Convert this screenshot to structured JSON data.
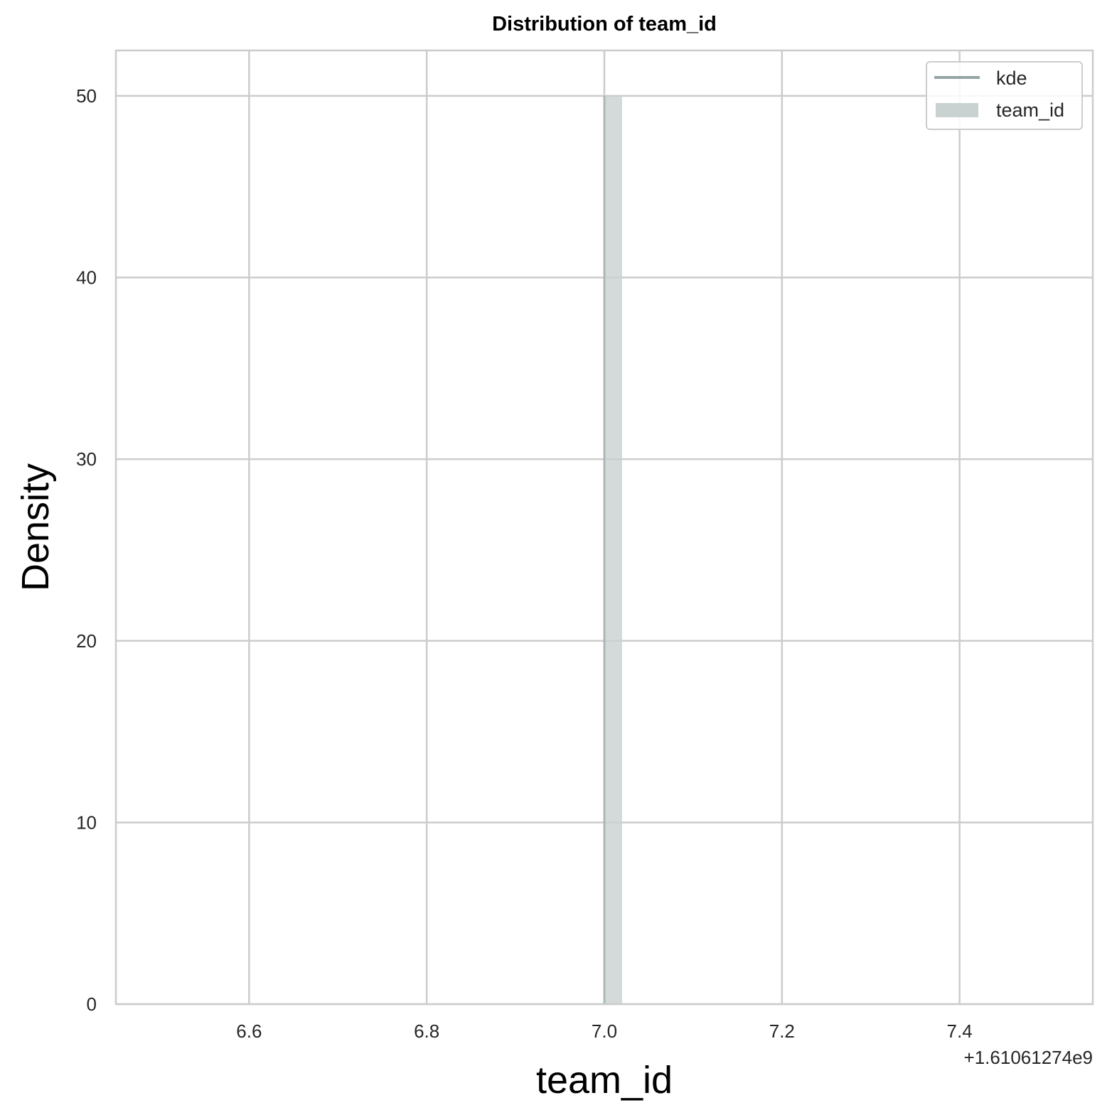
{
  "chart_data": {
    "type": "bar",
    "title": "Distribution of team_id",
    "xlabel": "team_id",
    "ylabel": "Density",
    "x_offset_label": "+1.61061274e9",
    "xlim": [
      6.45,
      7.55
    ],
    "ylim": [
      0,
      52.5
    ],
    "x_ticks": [
      6.6,
      6.8,
      7.0,
      7.2,
      7.4
    ],
    "x_tick_labels": [
      "6.6",
      "6.8",
      "7.0",
      "7.2",
      "7.4"
    ],
    "y_ticks": [
      0,
      10,
      20,
      30,
      40,
      50
    ],
    "y_tick_labels": [
      "0",
      "10",
      "20",
      "30",
      "40",
      "50"
    ],
    "grid": true,
    "legend_position": "top-right",
    "series": [
      {
        "name": "kde",
        "kind": "line",
        "color": "#95a5a6",
        "x": [
          7.0,
          7.0
        ],
        "y": [
          0,
          50
        ]
      },
      {
        "name": "team_id",
        "kind": "histogram",
        "color": "#c9d1d1",
        "bins": [
          {
            "x0": 7.0,
            "x1": 7.02,
            "density": 50
          }
        ]
      }
    ]
  }
}
